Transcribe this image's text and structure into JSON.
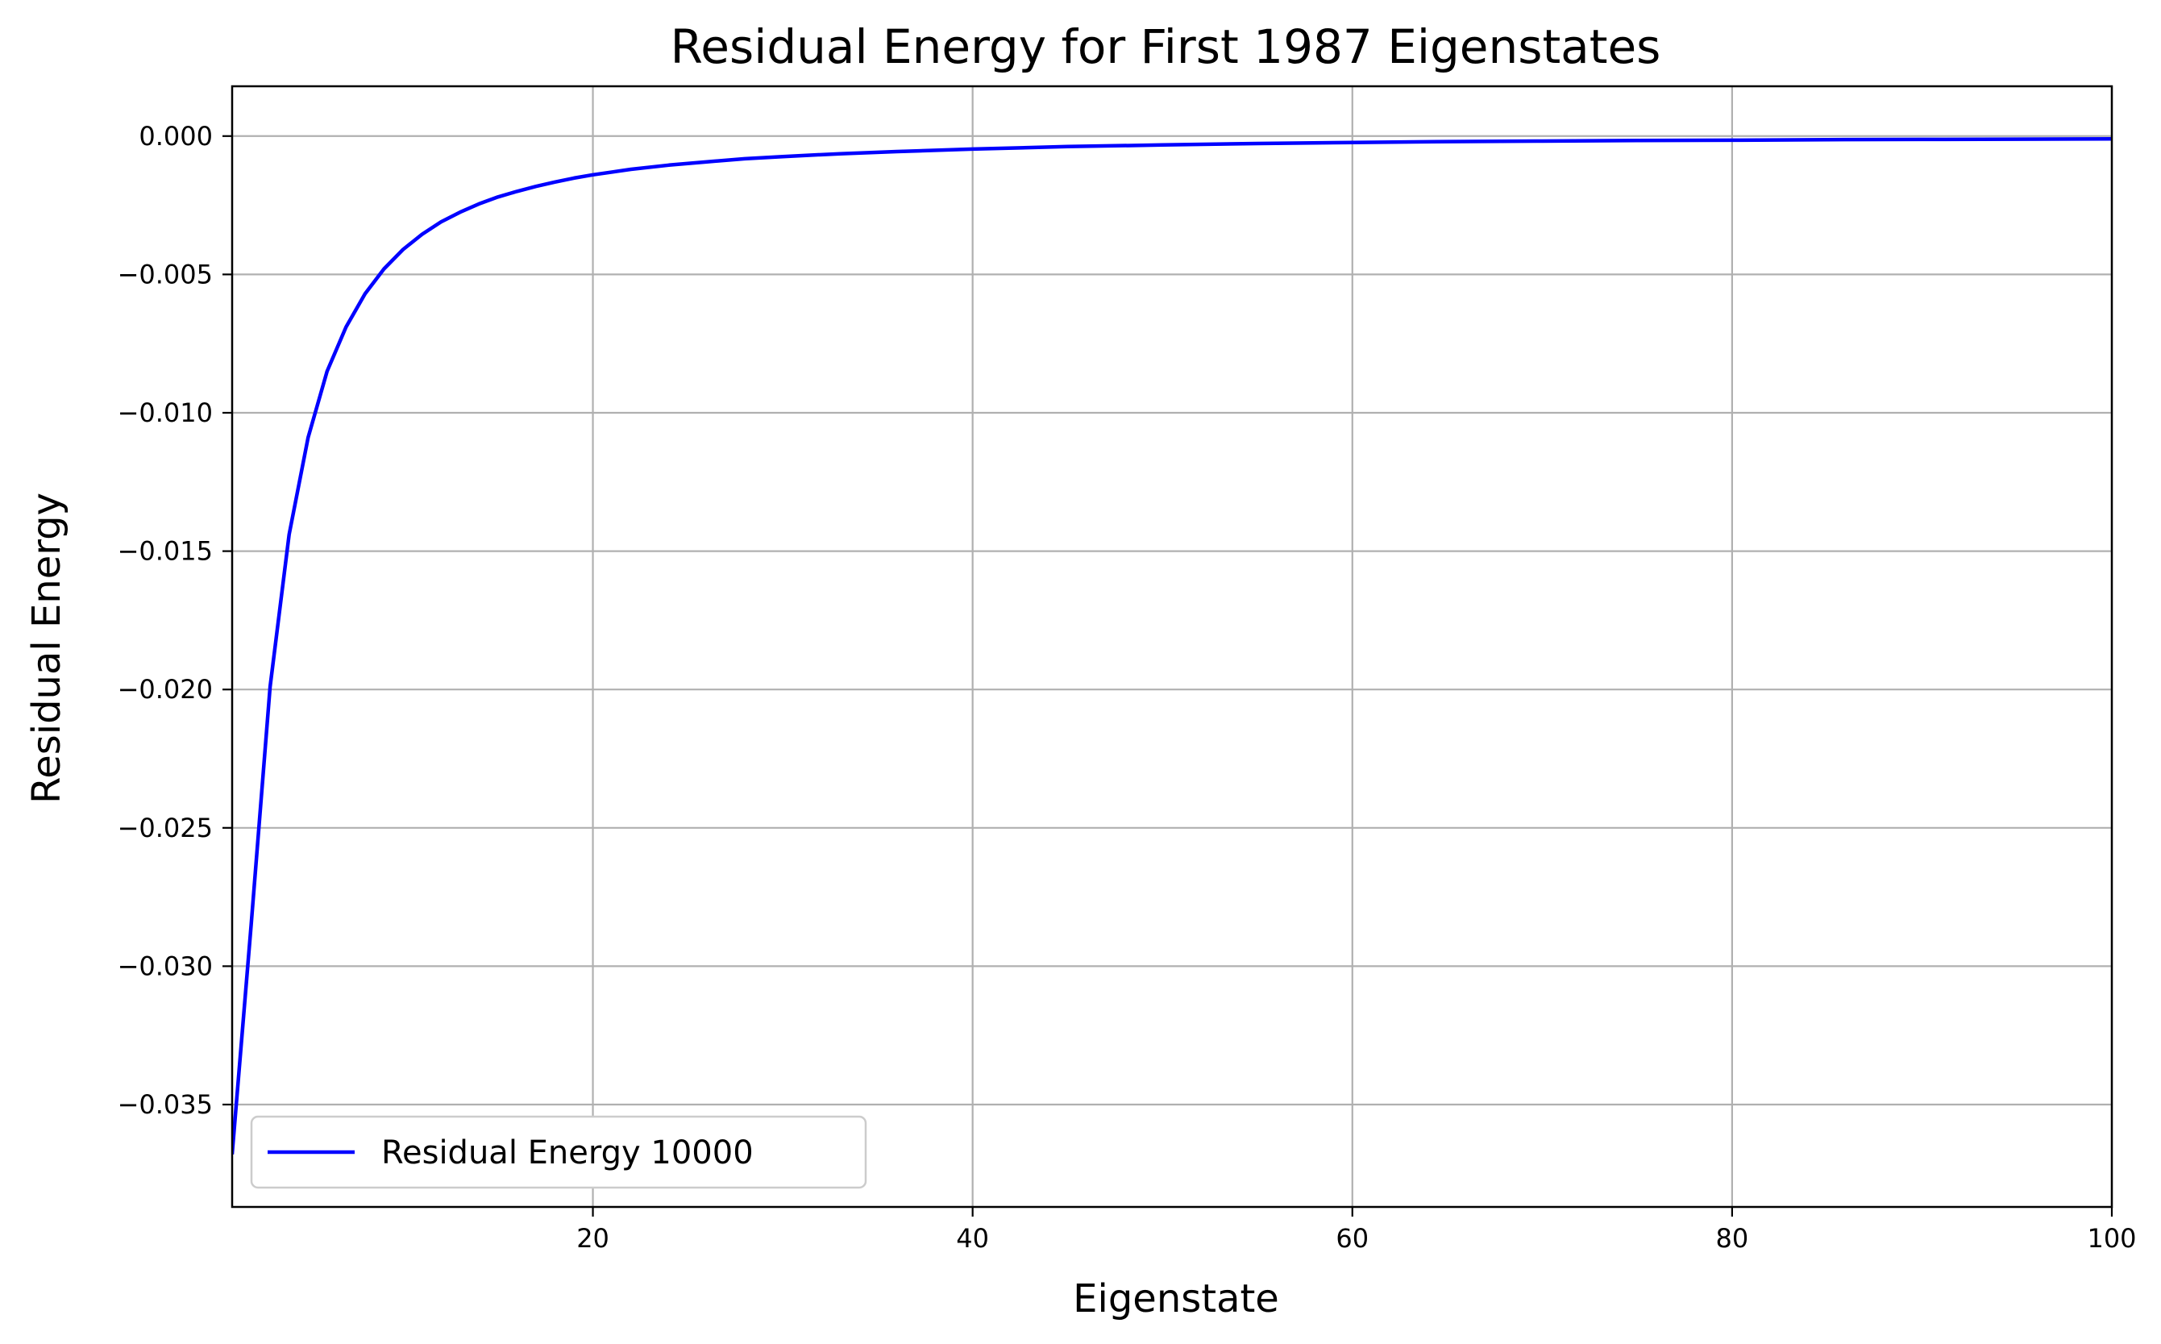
{
  "chart_data": {
    "type": "line",
    "title": "Residual Energy for First 1987 Eigenstates",
    "xlabel": "Eigenstate",
    "ylabel": "Residual Energy",
    "xlim": [
      1,
      100
    ],
    "ylim": [
      -0.0387,
      0.0018
    ],
    "grid": true,
    "legend_position": "bottom-left",
    "x_ticks": [
      20,
      40,
      60,
      80,
      100
    ],
    "y_ticks": [
      0.0,
      -0.005,
      -0.01,
      -0.015,
      -0.02,
      -0.025,
      -0.03,
      -0.035
    ],
    "x_tick_labels": [
      "20",
      "40",
      "60",
      "80",
      "100"
    ],
    "y_tick_labels": [
      "0.000",
      "−0.005",
      "−0.010",
      "−0.015",
      "−0.020",
      "−0.025",
      "−0.030",
      "−0.035"
    ],
    "series": [
      {
        "name": "Residual Energy 10000",
        "color": "#0000ff",
        "x": [
          1,
          2,
          3,
          4,
          5,
          6,
          7,
          8,
          9,
          10,
          11,
          12,
          13,
          14,
          15,
          16,
          17,
          18,
          19,
          20,
          22,
          24,
          26,
          28,
          30,
          33,
          36,
          40,
          45,
          50,
          55,
          60,
          65,
          70,
          75,
          80,
          85,
          90,
          95,
          100
        ],
        "y": [
          -0.0368,
          -0.0285,
          -0.0199,
          -0.0144,
          -0.0109,
          -0.0085,
          -0.0069,
          -0.0057,
          -0.0048,
          -0.0041,
          -0.00355,
          -0.0031,
          -0.00275,
          -0.00245,
          -0.0022,
          -0.002,
          -0.00182,
          -0.00166,
          -0.00152,
          -0.0014,
          -0.0012,
          -0.00105,
          -0.00093,
          -0.00082,
          -0.00074,
          -0.00064,
          -0.00056,
          -0.00047,
          -0.00038,
          -0.00032,
          -0.00027,
          -0.00023,
          -0.0002,
          -0.00018,
          -0.00016,
          -0.00015,
          -0.00013,
          -0.00012,
          -0.00011,
          -0.0001
        ]
      }
    ]
  }
}
